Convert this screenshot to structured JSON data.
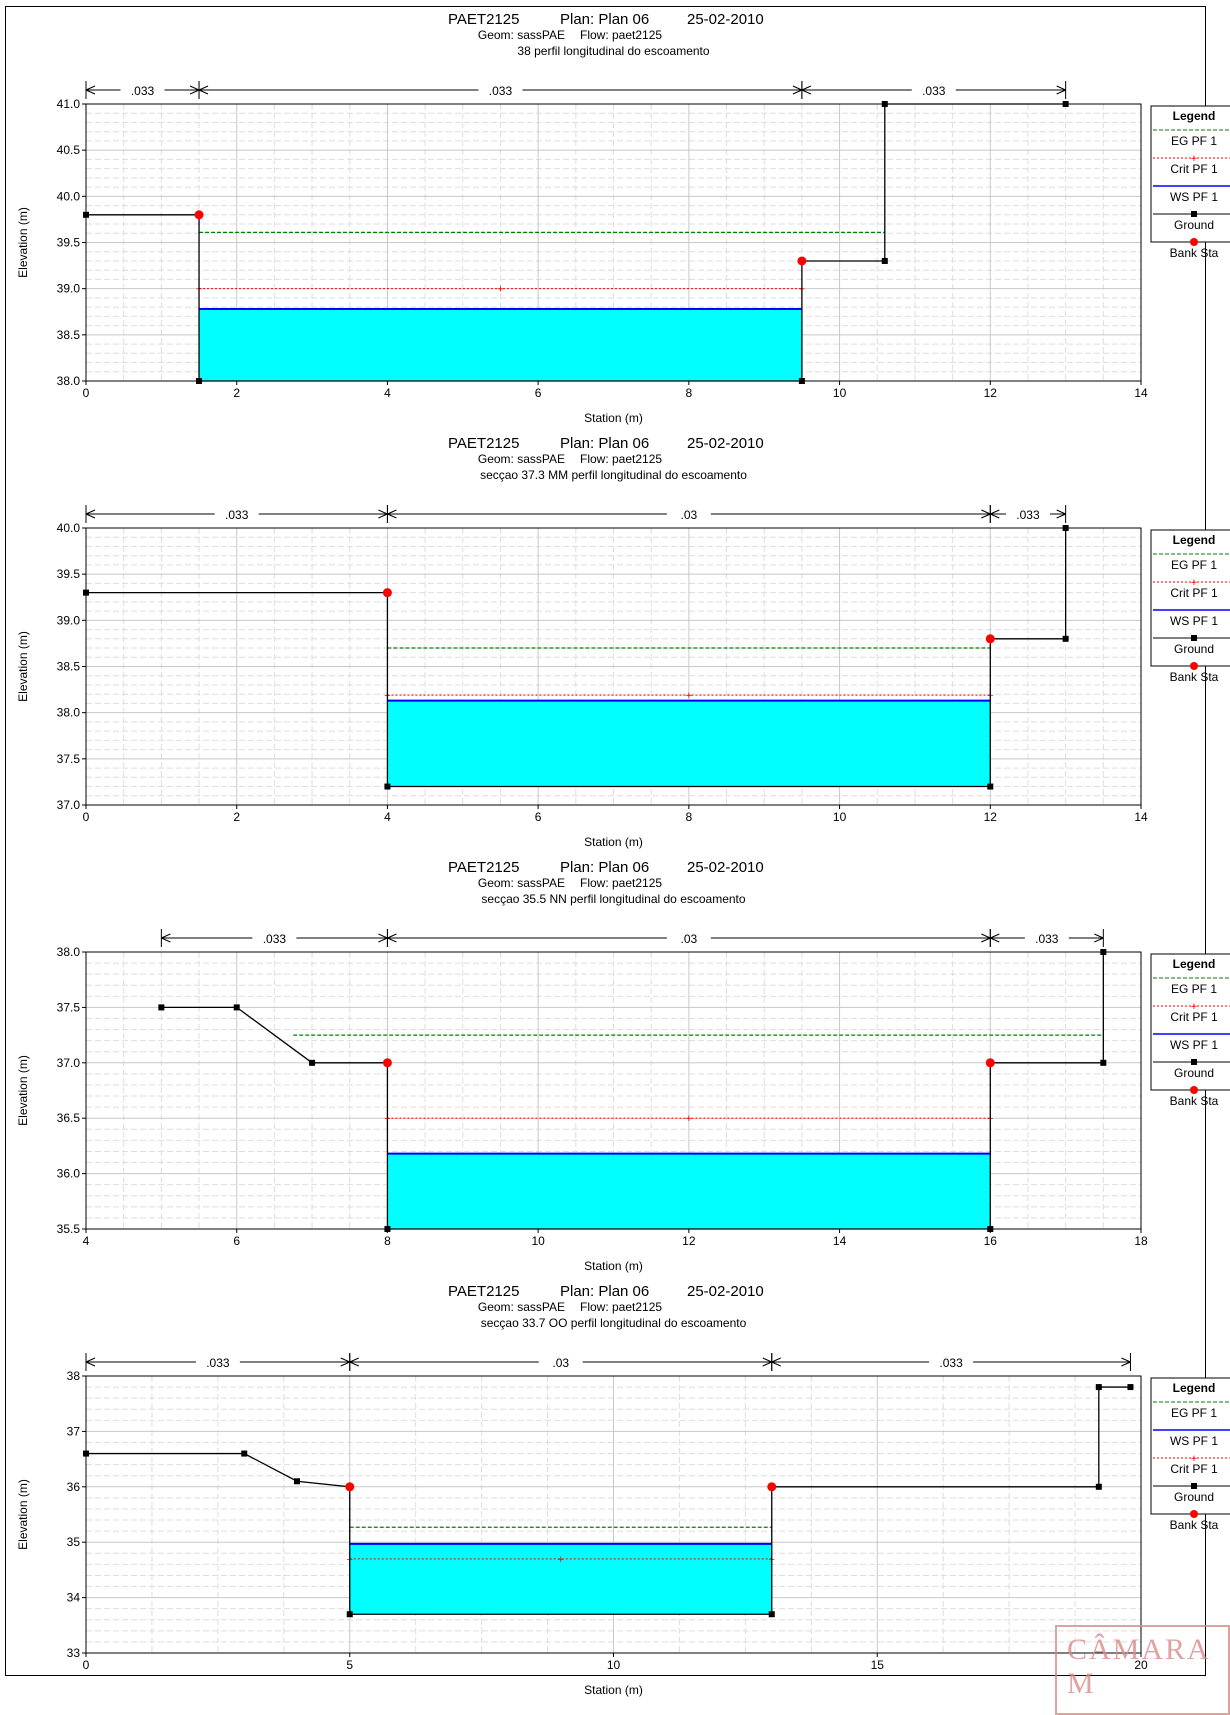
{
  "charts": [
    {
      "header": {
        "project": "PAET2125",
        "plan": "Plan: Plan 06",
        "date": "25-02-2010",
        "geom": "Geom: sassPAE",
        "flow": "Flow: paet2125",
        "section": "38  perfil longitudinal do escoamento"
      },
      "axes": {
        "xlabel": "Station (m)",
        "ylabel": "Elevation (m)",
        "xlim": [
          0,
          14
        ],
        "ylim": [
          38.0,
          41.0
        ],
        "xticks": [
          0,
          2,
          4,
          6,
          8,
          10,
          12,
          14
        ],
        "xtick_labels": [
          "0",
          "2",
          "4",
          "6",
          "8",
          "10",
          "12",
          "14"
        ],
        "yticks": [
          38.0,
          38.5,
          39.0,
          39.5,
          40.0,
          40.5,
          41.0
        ],
        "ytick_labels": [
          "38.0",
          "38.5",
          "39.0",
          "39.5",
          "40.0",
          "40.5",
          "41.0"
        ]
      },
      "manning": [
        {
          "from": 0,
          "to": 1.5,
          "label": ".033"
        },
        {
          "from": 1.5,
          "to": 9.5,
          "label": ".033"
        },
        {
          "from": 9.5,
          "to": 13,
          "label": ".033"
        }
      ],
      "legend": [
        "EG PF 1",
        "Crit PF 1",
        "WS PF 1",
        "Ground",
        "Bank Sta"
      ],
      "chart_data": {
        "type": "line",
        "ground": [
          [
            0,
            39.8
          ],
          [
            1.5,
            39.8
          ],
          [
            1.5,
            38.0
          ],
          [
            9.5,
            38.0
          ],
          [
            9.5,
            39.3
          ],
          [
            10.6,
            39.3
          ],
          [
            10.6,
            41.0
          ],
          [
            13,
            41.0
          ]
        ],
        "bank_sta": [
          [
            1.5,
            39.8
          ],
          [
            9.5,
            39.3
          ]
        ],
        "ws": {
          "elev": 38.78,
          "from": 1.5,
          "to": 9.5
        },
        "crit": {
          "elev": 39.0,
          "from": 1.5,
          "to": 9.5
        },
        "eg": {
          "elev": 39.61,
          "from": 1.5,
          "to": 10.6
        }
      }
    },
    {
      "header": {
        "project": "PAET2125",
        "plan": "Plan: Plan 06",
        "date": "25-02-2010",
        "geom": "Geom: sassPAE",
        "flow": "Flow: paet2125",
        "section": "secçao 37.3 MM  perfil longitudinal do escoamento"
      },
      "axes": {
        "xlabel": "Station (m)",
        "ylabel": "Elevation (m)",
        "xlim": [
          0,
          14
        ],
        "ylim": [
          37.0,
          40.0
        ],
        "xticks": [
          0,
          2,
          4,
          6,
          8,
          10,
          12,
          14
        ],
        "xtick_labels": [
          "0",
          "2",
          "4",
          "6",
          "8",
          "10",
          "12",
          "14"
        ],
        "yticks": [
          37.0,
          37.5,
          38.0,
          38.5,
          39.0,
          39.5,
          40.0
        ],
        "ytick_labels": [
          "37.0",
          "37.5",
          "38.0",
          "38.5",
          "39.0",
          "39.5",
          "40.0"
        ]
      },
      "manning": [
        {
          "from": 0,
          "to": 4,
          "label": ".033"
        },
        {
          "from": 4,
          "to": 12,
          "label": ".03"
        },
        {
          "from": 12,
          "to": 13,
          "label": ".033"
        }
      ],
      "legend": [
        "EG PF 1",
        "Crit PF 1",
        "WS PF 1",
        "Ground",
        "Bank Sta"
      ],
      "chart_data": {
        "type": "line",
        "ground": [
          [
            0,
            39.3
          ],
          [
            4,
            39.3
          ],
          [
            4,
            37.2
          ],
          [
            12,
            37.2
          ],
          [
            12,
            38.8
          ],
          [
            13,
            38.8
          ],
          [
            13,
            40.0
          ]
        ],
        "bank_sta": [
          [
            4,
            39.3
          ],
          [
            12,
            38.8
          ]
        ],
        "ws": {
          "elev": 38.13,
          "from": 4,
          "to": 12
        },
        "crit": {
          "elev": 38.19,
          "from": 4,
          "to": 12
        },
        "eg": {
          "elev": 38.7,
          "from": 4,
          "to": 12
        }
      }
    },
    {
      "header": {
        "project": "PAET2125",
        "plan": "Plan: Plan 06",
        "date": "25-02-2010",
        "geom": "Geom: sassPAE",
        "flow": "Flow: paet2125",
        "section": "secçao 35.5 NN  perfil longitudinal do escoamento"
      },
      "axes": {
        "xlabel": "Station (m)",
        "ylabel": "Elevation (m)",
        "xlim": [
          4,
          18
        ],
        "ylim": [
          35.5,
          38.0
        ],
        "xticks": [
          4,
          6,
          8,
          10,
          12,
          14,
          16,
          18
        ],
        "xtick_labels": [
          "4",
          "6",
          "8",
          "10",
          "12",
          "14",
          "16",
          "18"
        ],
        "yticks": [
          35.5,
          36.0,
          36.5,
          37.0,
          37.5,
          38.0
        ],
        "ytick_labels": [
          "35.5",
          "36.0",
          "36.5",
          "37.0",
          "37.5",
          "38.0"
        ]
      },
      "manning": [
        {
          "from": 5,
          "to": 8,
          "label": ".033"
        },
        {
          "from": 8,
          "to": 16,
          "label": ".03"
        },
        {
          "from": 16,
          "to": 17.5,
          "label": ".033"
        }
      ],
      "legend": [
        "EG PF 1",
        "Crit PF 1",
        "WS PF 1",
        "Ground",
        "Bank Sta"
      ],
      "chart_data": {
        "type": "line",
        "ground": [
          [
            5,
            37.5
          ],
          [
            6,
            37.5
          ],
          [
            7,
            37.0
          ],
          [
            8,
            37.0
          ],
          [
            8,
            35.5
          ],
          [
            16,
            35.5
          ],
          [
            16,
            37.0
          ],
          [
            17.5,
            37.0
          ],
          [
            17.5,
            38.0
          ]
        ],
        "bank_sta": [
          [
            8,
            37.0
          ],
          [
            16,
            37.0
          ]
        ],
        "ws": {
          "elev": 36.18,
          "from": 8,
          "to": 16
        },
        "crit": {
          "elev": 36.5,
          "from": 8,
          "to": 16
        },
        "eg": {
          "elev": 37.25,
          "from": 6.75,
          "to": 17.5
        }
      }
    },
    {
      "header": {
        "project": "PAET2125",
        "plan": "Plan: Plan 06",
        "date": "25-02-2010",
        "geom": "Geom: sassPAE",
        "flow": "Flow: paet2125",
        "section": "secçao 33.7 OO  perfil longitudinal do escoamento"
      },
      "axes": {
        "xlabel": "Station (m)",
        "ylabel": "Elevation (m)",
        "xlim": [
          0,
          20
        ],
        "ylim": [
          33.0,
          38.0
        ],
        "xticks": [
          0,
          5,
          10,
          15,
          20
        ],
        "xtick_labels": [
          "0",
          "5",
          "10",
          "15",
          "20"
        ],
        "yticks": [
          33,
          34,
          35,
          36,
          37,
          38
        ],
        "ytick_labels": [
          "33",
          "34",
          "35",
          "36",
          "37",
          "38"
        ]
      },
      "manning": [
        {
          "from": 0,
          "to": 5,
          "label": ".033"
        },
        {
          "from": 5,
          "to": 13,
          "label": ".03"
        },
        {
          "from": 13,
          "to": 19.8,
          "label": ".033"
        }
      ],
      "legend": [
        "EG PF 1",
        "WS PF 1",
        "Crit PF 1",
        "Ground",
        "Bank Sta"
      ],
      "chart_data": {
        "type": "line",
        "ground": [
          [
            0,
            36.6
          ],
          [
            3,
            36.6
          ],
          [
            4,
            36.1
          ],
          [
            5,
            36.0
          ],
          [
            5,
            33.7
          ],
          [
            13,
            33.7
          ],
          [
            13,
            36.0
          ],
          [
            19.2,
            36.0
          ],
          [
            19.2,
            37.8
          ],
          [
            19.8,
            37.8
          ]
        ],
        "bank_sta": [
          [
            5,
            36.0
          ],
          [
            13,
            36.0
          ]
        ],
        "ws": {
          "elev": 34.97,
          "from": 5,
          "to": 13
        },
        "crit": {
          "elev": 34.7,
          "from": 5,
          "to": 13
        },
        "eg": {
          "elev": 35.27,
          "from": 5,
          "to": 13
        }
      }
    }
  ],
  "stamp": "CÂMARA M",
  "colors": {
    "water": "#00ffff",
    "ws": "#0000ff",
    "crit": "#ff0000",
    "eg": "#008000",
    "ground": "#000000",
    "bank": "#ff0000",
    "grid_major": "#c8c8c8",
    "grid_minor": "#dedede"
  }
}
